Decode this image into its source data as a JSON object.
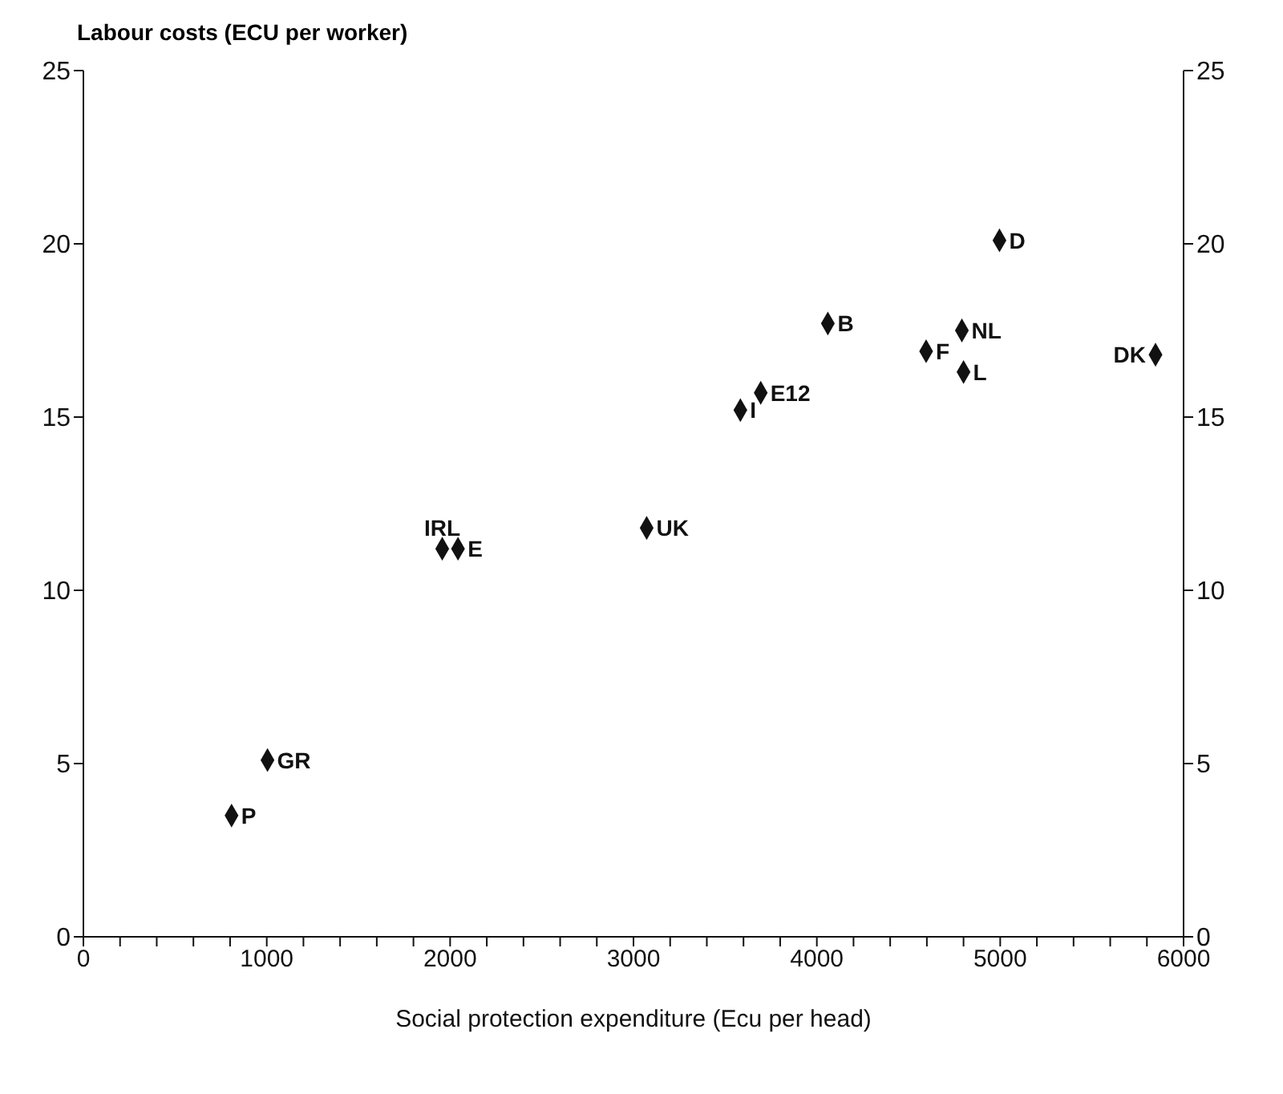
{
  "chart_data": {
    "type": "scatter",
    "ylabel": "Labour costs (ECU per worker)",
    "xlabel": "Social protection expenditure (Ecu per head)",
    "x": [
      808,
      1004,
      1957,
      2043,
      3072,
      3583,
      3694,
      4060,
      4596,
      4791,
      4800,
      4996,
      5847
    ],
    "series": [
      {
        "color": "#111111",
        "values": [
          3.5,
          5.1,
          11.2,
          11.2,
          11.8,
          15.2,
          15.7,
          17.7,
          16.9,
          17.5,
          16.3,
          20.1,
          16.8
        ]
      }
    ],
    "marker": "diamond",
    "annotations": [
      {
        "text": "P",
        "x": 808,
        "y": 3.5
      },
      {
        "text": "GR",
        "x": 1004,
        "y": 5.1
      },
      {
        "text": "IRL",
        "x": 1957,
        "y": 11.2
      },
      {
        "text": "E",
        "x": 2043,
        "y": 11.2
      },
      {
        "text": "UK",
        "x": 3072,
        "y": 11.8
      },
      {
        "text": "I",
        "x": 3583,
        "y": 15.2
      },
      {
        "text": "E12",
        "x": 3694,
        "y": 15.7
      },
      {
        "text": "B",
        "x": 4060,
        "y": 17.7
      },
      {
        "text": "F",
        "x": 4596,
        "y": 16.9
      },
      {
        "text": "NL",
        "x": 4791,
        "y": 17.5
      },
      {
        "text": "L",
        "x": 4800,
        "y": 16.3
      },
      {
        "text": "D",
        "x": 4996,
        "y": 20.1
      },
      {
        "text": "DK",
        "x": 5847,
        "y": 16.8
      }
    ],
    "xlim": [
      0,
      6000
    ],
    "xticks": [
      0,
      {
        "value": 200,
        "label": null
      },
      {
        "value": 400,
        "label": null
      },
      {
        "value": 600,
        "label": null
      },
      {
        "value": 800,
        "label": null
      },
      1000,
      {
        "value": 1200,
        "label": null
      },
      {
        "value": 1400,
        "label": null
      },
      {
        "value": 1600,
        "label": null
      },
      {
        "value": 1800,
        "label": null
      },
      2000,
      {
        "value": 2200,
        "label": null
      },
      {
        "value": 2400,
        "label": null
      },
      {
        "value": 2600,
        "label": null
      },
      {
        "value": 2800,
        "label": null
      },
      3000,
      {
        "value": 3200,
        "label": null
      },
      {
        "value": 3400,
        "label": null
      },
      {
        "value": 3600,
        "label": null
      },
      {
        "value": 3800,
        "label": null
      },
      4000,
      {
        "value": 4200,
        "label": null
      },
      {
        "value": 4400,
        "label": null
      },
      {
        "value": 4600,
        "label": null
      },
      {
        "value": 4800,
        "label": null
      },
      5000,
      {
        "value": 5200,
        "label": null
      },
      {
        "value": 5400,
        "label": null
      },
      {
        "value": 5600,
        "label": null
      },
      {
        "value": 5800,
        "label": null
      },
      6000
    ],
    "ylim": [
      0,
      25
    ],
    "yticks": [
      0,
      5,
      10,
      15,
      20,
      25
    ],
    "y2lim": [
      0,
      25
    ],
    "y2ticks": [
      0,
      5,
      10,
      15,
      20,
      25
    ],
    "grid": false,
    "legend": false
  }
}
